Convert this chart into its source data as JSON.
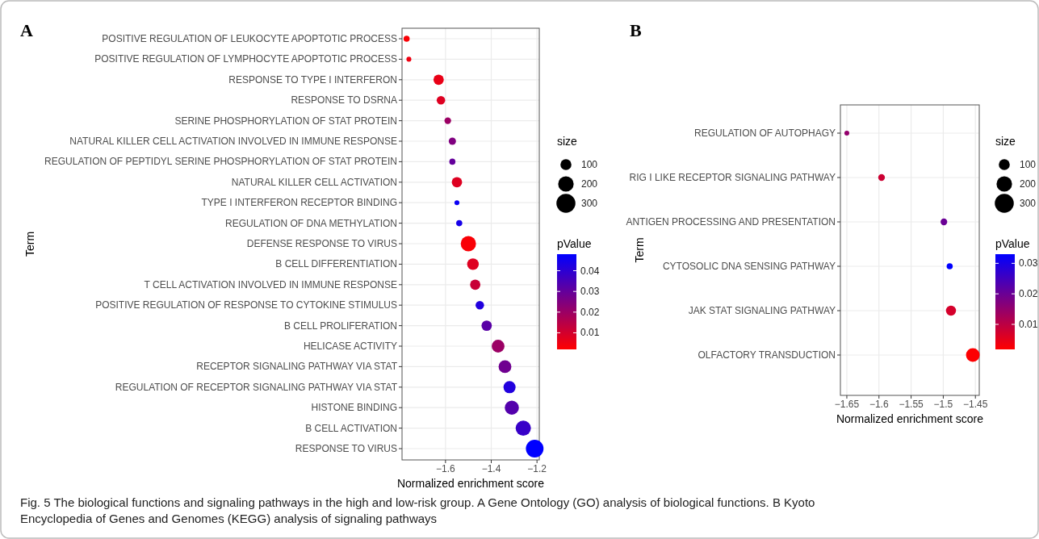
{
  "chart_data": [
    {
      "type": "bubble",
      "orientation": "horizontal",
      "xlabel": "Normalized enrichment score",
      "ylabel": "Term",
      "legend_title": "size",
      "clabel": "pValue",
      "grid": true,
      "annotations": [
        "A",
        "Fig. 5  The biological functions and signaling pathways in the high and low-risk group. A Gene Ontology (GO) analysis of biological functions. B Kyoto Encyclopedia of Genes and Genomes (KEGG) analysis of signaling pathways"
      ],
      "categories": [
        "POSITIVE REGULATION OF LEUKOCYTE APOPTOTIC PROCESS",
        "POSITIVE REGULATION OF LYMPHOCYTE APOPTOTIC PROCESS",
        "RESPONSE TO TYPE I INTERFERON",
        "RESPONSE TO DSRNA",
        "SERINE PHOSPHORYLATION OF STAT PROTEIN",
        "NATURAL KILLER CELL ACTIVATION INVOLVED IN IMMUNE RESPONSE",
        "REGULATION OF PEPTIDYL SERINE PHOSPHORYLATION OF STAT PROTEIN",
        "NATURAL KILLER CELL ACTIVATION",
        "TYPE I INTERFERON RECEPTOR BINDING",
        "REGULATION OF DNA METHYLATION",
        "DEFENSE RESPONSE TO VIRUS",
        "B CELL DIFFERENTIATION",
        "T CELL ACTIVATION INVOLVED IN IMMUNE RESPONSE",
        "POSITIVE REGULATION OF RESPONSE TO CYTOKINE STIMULUS",
        "B CELL PROLIFERATION",
        "HELICASE ACTIVITY",
        "RECEPTOR SIGNALING PATHWAY VIA STAT",
        "REGULATION OF RECEPTOR SIGNALING PATHWAY VIA STAT",
        "HISTONE BINDING",
        "B CELL ACTIVATION",
        "RESPONSE TO VIRUS"
      ],
      "values": [
        -1.77,
        -1.76,
        -1.63,
        -1.62,
        -1.59,
        -1.57,
        -1.57,
        -1.55,
        -1.55,
        -1.54,
        -1.5,
        -1.48,
        -1.47,
        -1.45,
        -1.42,
        -1.37,
        -1.34,
        -1.32,
        -1.31,
        -1.26,
        -1.21
      ],
      "sizes": [
        31,
        20,
        89,
        60,
        37,
        44,
        31,
        89,
        20,
        31,
        194,
        112,
        89,
        60,
        89,
        136,
        136,
        123,
        163,
        194,
        259
      ],
      "size_legend": [
        100,
        200,
        300
      ],
      "cvalues": [
        0.003,
        0.005,
        0.006,
        0.008,
        0.02,
        0.025,
        0.03,
        0.008,
        0.046,
        0.044,
        0.003,
        0.008,
        0.012,
        0.042,
        0.032,
        0.02,
        0.028,
        0.042,
        0.033,
        0.038,
        0.048
      ],
      "clim": [
        0.002,
        0.048
      ],
      "cticks": [
        0.01,
        0.02,
        0.03,
        0.04
      ],
      "xlim": [
        -1.79,
        -1.19
      ],
      "xticks": [
        -1.6,
        -1.4,
        -1.2
      ]
    },
    {
      "type": "bubble",
      "orientation": "horizontal",
      "xlabel": "Normalized enrichment score",
      "ylabel": "Term",
      "legend_title": "size",
      "clabel": "pValue",
      "grid": true,
      "annotations": [
        "B"
      ],
      "categories": [
        "REGULATION OF AUTOPHAGY",
        "RIG I LIKE RECEPTOR SIGNALING PATHWAY",
        "ANTIGEN PROCESSING AND PRESENTATION",
        "CYTOSOLIC DNA SENSING PATHWAY",
        "JAK STAT SIGNALING PATHWAY",
        "OLFACTORY TRANSDUCTION"
      ],
      "values": [
        -1.65,
        -1.596,
        -1.499,
        -1.49,
        -1.488,
        -1.454
      ],
      "sizes": [
        20,
        37,
        37,
        31,
        84,
        156
      ],
      "size_legend": [
        100,
        200,
        300
      ],
      "cvalues": [
        0.015,
        0.008,
        0.02,
        0.033,
        0.007,
        0.002
      ],
      "clim": [
        0.0018,
        0.033
      ],
      "cticks": [
        0.01,
        0.02,
        0.03
      ],
      "xlim": [
        -1.66,
        -1.444
      ],
      "xticks": [
        -1.65,
        -1.6,
        -1.55,
        -1.5,
        -1.45
      ]
    }
  ]
}
